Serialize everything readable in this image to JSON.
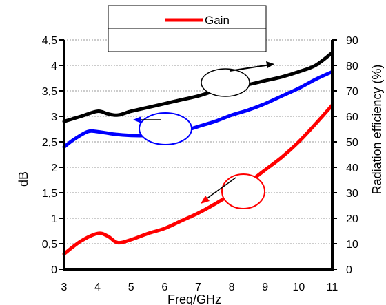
{
  "chart_data": {
    "type": "line",
    "xlabel": "Freq/GHz",
    "ylabel_left": "dB",
    "ylabel_right": "Radiation efficiency (%)",
    "x_ticks": [
      "3",
      "4",
      "5",
      "6",
      "7",
      "8",
      "9",
      "10",
      "11"
    ],
    "y_left_ticks": [
      "0",
      "0,5",
      "1",
      "1,5",
      "2",
      "2,5",
      "3",
      "3,5",
      "4",
      "4,5"
    ],
    "y_right_ticks": [
      "0",
      "10",
      "20",
      "30",
      "40",
      "50",
      "60",
      "70",
      "80",
      "90"
    ],
    "xlim": [
      3,
      11
    ],
    "ylim_left": [
      0,
      4.5
    ],
    "ylim_right": [
      0,
      90
    ],
    "grid": "horizontal dotted",
    "legend": {
      "placement": "top-center",
      "entries": [
        "Gain"
      ]
    },
    "series": [
      {
        "name": "Gain",
        "axis": "left",
        "color": "#ff0000",
        "x": [
          3,
          3.5,
          4,
          4.3,
          4.6,
          5,
          5.5,
          6,
          6.5,
          7,
          7.5,
          8,
          8.5,
          9,
          9.5,
          10,
          10.5,
          11
        ],
        "y": [
          0.3,
          0.55,
          0.7,
          0.65,
          0.52,
          0.58,
          0.7,
          0.8,
          0.95,
          1.1,
          1.28,
          1.48,
          1.7,
          1.95,
          2.2,
          2.5,
          2.85,
          3.22
        ]
      },
      {
        "axis": "right",
        "color": "#0000ff",
        "x": [
          3,
          3.3,
          3.7,
          4,
          4.5,
          5,
          5.5,
          6,
          6.5,
          7,
          7.5,
          8,
          8.5,
          9,
          9.5,
          10,
          10.5,
          11
        ],
        "y": [
          48,
          51,
          54,
          54,
          53,
          52.5,
          52.5,
          53,
          54,
          56,
          58,
          60.5,
          62.5,
          65,
          68,
          71,
          74.5,
          77.5
        ]
      },
      {
        "axis": "right",
        "color": "#000000",
        "x": [
          3,
          3.5,
          4,
          4.3,
          4.6,
          5,
          5.5,
          6,
          6.5,
          7,
          7.5,
          8,
          8.5,
          9,
          9.5,
          10,
          10.5,
          11
        ],
        "y": [
          58,
          60,
          62,
          61,
          60.5,
          62,
          63.5,
          65,
          66.5,
          68,
          70,
          71.5,
          72.5,
          74,
          75.5,
          77.5,
          80,
          85
        ]
      }
    ]
  }
}
